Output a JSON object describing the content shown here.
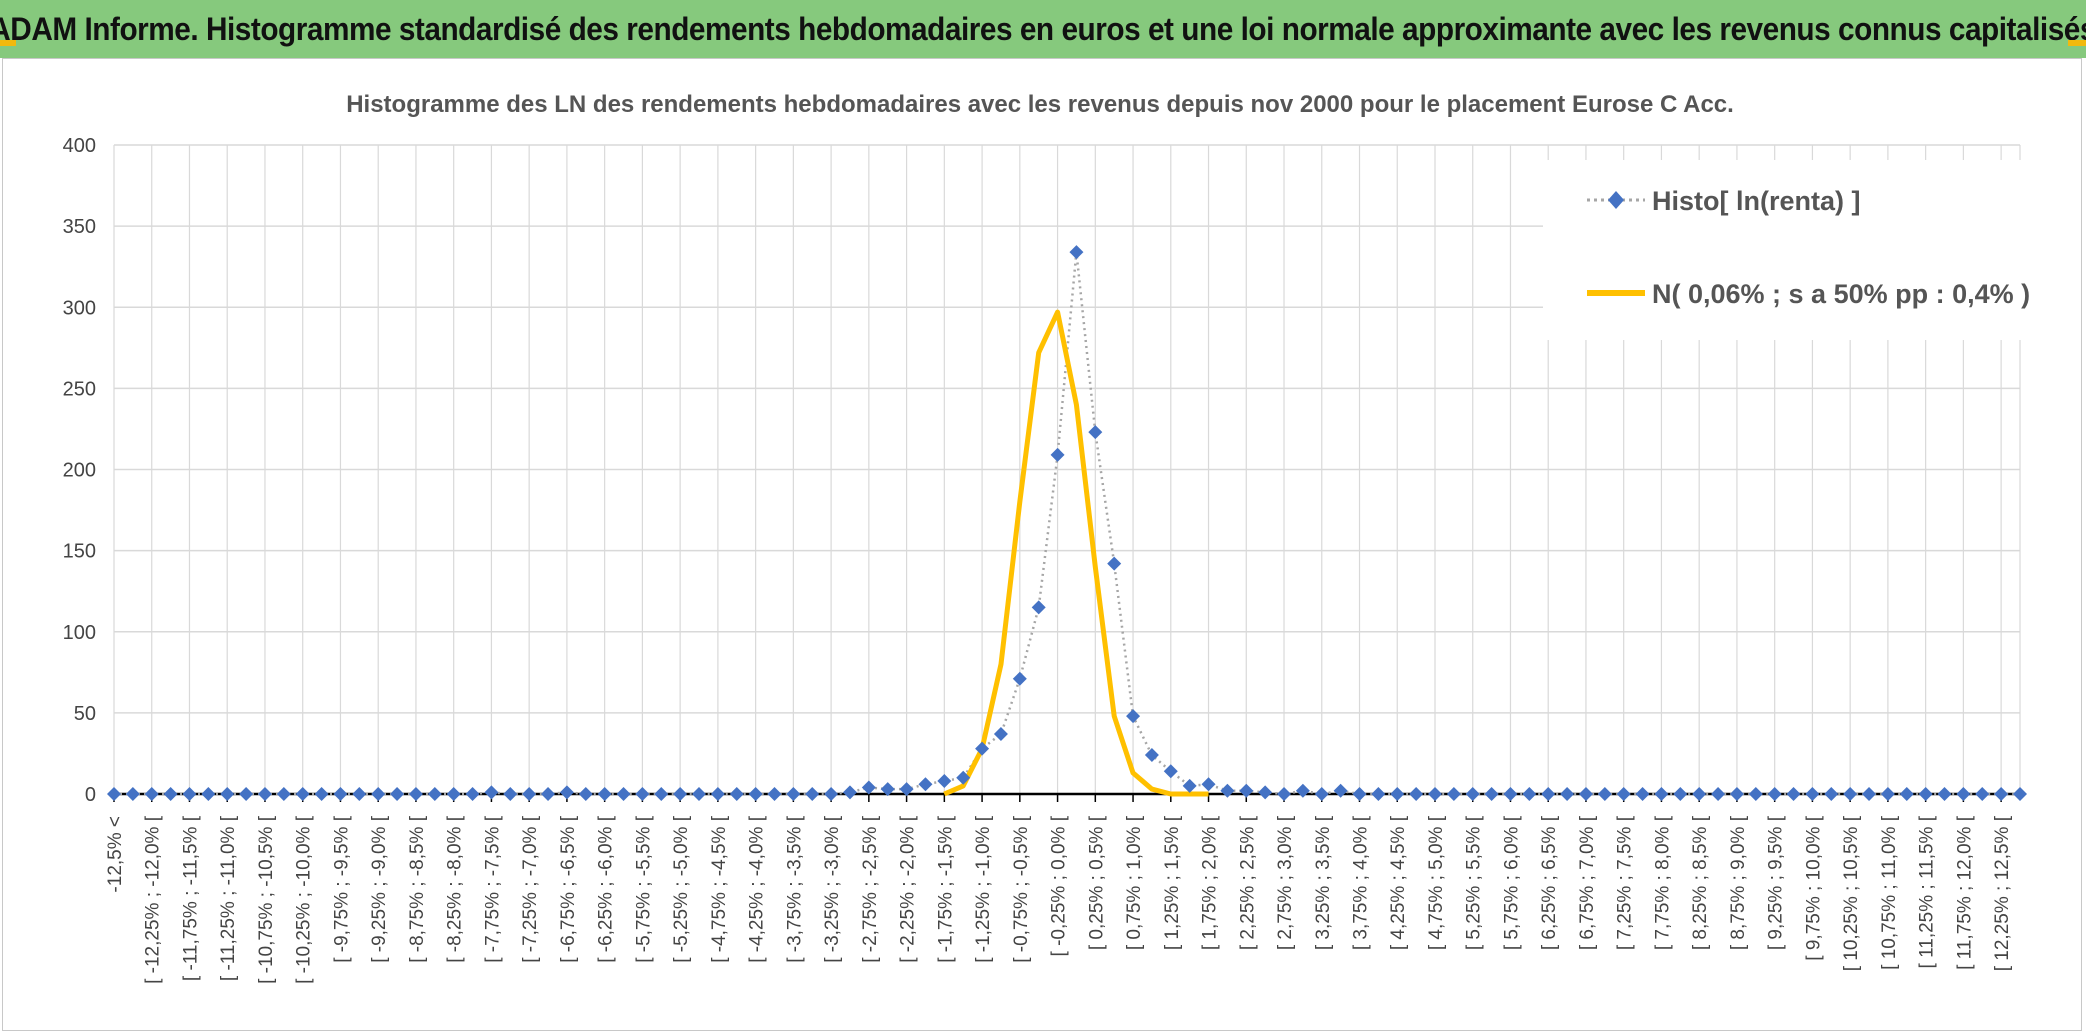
{
  "banner": {
    "title": "ADAM Informe. Histogramme standardisé des rendements hebdomadaires en euros et une loi normale approximante avec les revenus connus capitalisés"
  },
  "colors": {
    "banner_bg": "#86c97d",
    "histo_marker": "#4472c4",
    "histo_line": "#a6a6a6",
    "normal_line": "#ffc000",
    "grid": "#d9d9d9",
    "corner_accent": "#f2b90d"
  },
  "chart_data": {
    "type": "line",
    "title": "Histogramme des LN des rendements hebdomadaires avec les revenus depuis nov 2000 pour le placement Eurose C Acc.",
    "xlabel": "",
    "ylabel": "",
    "ylim": [
      0,
      400
    ],
    "yticks": [
      0,
      50,
      100,
      150,
      200,
      250,
      300,
      350,
      400
    ],
    "grid": true,
    "legend_position": "top-right",
    "categories": [
      "-12,5% <",
      "[ -12,25% ; -12,0% [",
      "[ -11,75% ; -11,5% [",
      "[ -11,25% ; -11,0% [",
      "[ -10,75% ; -10,5% [",
      "[ -10,25% ; -10,0% [",
      "[ -9,75% ; -9,5% [",
      "[ -9,25% ; -9,0% [",
      "[ -8,75% ; -8,5% [",
      "[ -8,25% ; -8,0% [",
      "[ -7,75% ; -7,5% [",
      "[ -7,25% ; -7,0% [",
      "[ -6,75% ; -6,5% [",
      "[ -6,25% ; -6,0% [",
      "[ -5,75% ; -5,5% [",
      "[ -5,25% ; -5,0% [",
      "[ -4,75% ; -4,5% [",
      "[ -4,25% ; -4,0% [",
      "[ -3,75% ; -3,5% [",
      "[ -3,25% ; -3,0% [",
      "[ -2,75% ; -2,5% [",
      "[ -2,25% ; -2,0% [",
      "[ -1,75% ; -1,5% [",
      "[ -1,25% ; -1,0% [",
      "[ -0,75% ; -0,5% [",
      "[ -0,25% ; 0,0% [",
      "[ 0,25% ; 0,5% [",
      "[ 0,75% ; 1,0% [",
      "[ 1,25% ; 1,5% [",
      "[ 1,75% ; 2,0% [",
      "[ 2,25% ; 2,5% [",
      "[ 2,75% ; 3,0% [",
      "[ 3,25% ; 3,5% [",
      "[ 3,75% ; 4,0% [",
      "[ 4,25% ; 4,5% [",
      "[ 4,75% ; 5,0% [",
      "[ 5,25% ; 5,5% [",
      "[ 5,75% ; 6,0% [",
      "[ 6,25% ; 6,5% [",
      "[ 6,75% ; 7,0% [",
      "[ 7,25% ; 7,5% [",
      "[ 7,75% ; 8,0% [",
      "[ 8,25% ; 8,5% [",
      "[ 8,75% ; 9,0% [",
      "[ 9,25% ; 9,5% [",
      "[ 9,75% ; 10,0% [",
      "[ 10,25% ; 10,5% [",
      "[ 10,75% ; 11,0% [",
      "[ 11,25% ; 11,5% [",
      "[ 11,75% ; 12,0% [",
      "[ 12,25% ; 12,5% ["
    ],
    "x_min": -12.5,
    "x_max": 12.75,
    "x_step": 0.25,
    "series": [
      {
        "name": "Histo[ ln(renta) ]",
        "style": "dotted-line-diamond",
        "x": [
          -12.5,
          -12.25,
          -12,
          -11.75,
          -11.5,
          -11.25,
          -11,
          -10.75,
          -10.5,
          -10.25,
          -10,
          -9.75,
          -9.5,
          -9.25,
          -9,
          -8.75,
          -8.5,
          -8.25,
          -8,
          -7.75,
          -7.5,
          -7.25,
          -7,
          -6.75,
          -6.5,
          -6.25,
          -6,
          -5.75,
          -5.5,
          -5.25,
          -5,
          -4.75,
          -4.5,
          -4.25,
          -4,
          -3.75,
          -3.5,
          -3.25,
          -3,
          -2.75,
          -2.5,
          -2.25,
          -2,
          -1.75,
          -1.5,
          -1.25,
          -1,
          -0.75,
          -0.5,
          -0.25,
          0,
          0.25,
          0.5,
          0.75,
          1,
          1.25,
          1.5,
          1.75,
          2,
          2.25,
          2.5,
          2.75,
          3,
          3.25,
          3.5,
          3.75,
          4,
          4.25,
          4.5,
          4.75,
          5,
          5.25,
          5.5,
          5.75,
          6,
          6.25,
          6.5,
          6.75,
          7,
          7.25,
          7.5,
          7.75,
          8,
          8.25,
          8.5,
          8.75,
          9,
          9.25,
          9.5,
          9.75,
          10,
          10.25,
          10.5,
          10.75,
          11,
          11.25,
          11.5,
          11.75,
          12,
          12.25,
          12.5,
          12.75
        ],
        "values": [
          0,
          0,
          0,
          0,
          0,
          0,
          0,
          0,
          0,
          0,
          0,
          0,
          0,
          0,
          0,
          0,
          0,
          0,
          0,
          0,
          1,
          0,
          0,
          0,
          1,
          0,
          0,
          0,
          0,
          0,
          0,
          0,
          0,
          0,
          0,
          0,
          0,
          0,
          0,
          1,
          4,
          3,
          3,
          6,
          8,
          10,
          28,
          37,
          71,
          115,
          209,
          334,
          223,
          142,
          48,
          24,
          14,
          5,
          6,
          2,
          2,
          1,
          0,
          2,
          0,
          2,
          0,
          0,
          0,
          0,
          0,
          0,
          0,
          0,
          0,
          0,
          0,
          0,
          0,
          0,
          0,
          0,
          0,
          0,
          0,
          0,
          0,
          0,
          0,
          0,
          0,
          0,
          0,
          0,
          0,
          0,
          0,
          0,
          0,
          0,
          0,
          0
        ]
      },
      {
        "name": "N( 0,06% ; s a 50% pp : 0,4% )",
        "style": "solid-line",
        "x": [
          -1.5,
          -1.25,
          -1,
          -0.75,
          -0.5,
          -0.25,
          0,
          0.25,
          0.5,
          0.75,
          1,
          1.25,
          1.5,
          1.75,
          2
        ],
        "values": [
          0,
          5,
          28,
          80,
          180,
          272,
          297,
          240,
          140,
          48,
          13,
          3,
          0,
          0,
          0
        ]
      }
    ]
  }
}
